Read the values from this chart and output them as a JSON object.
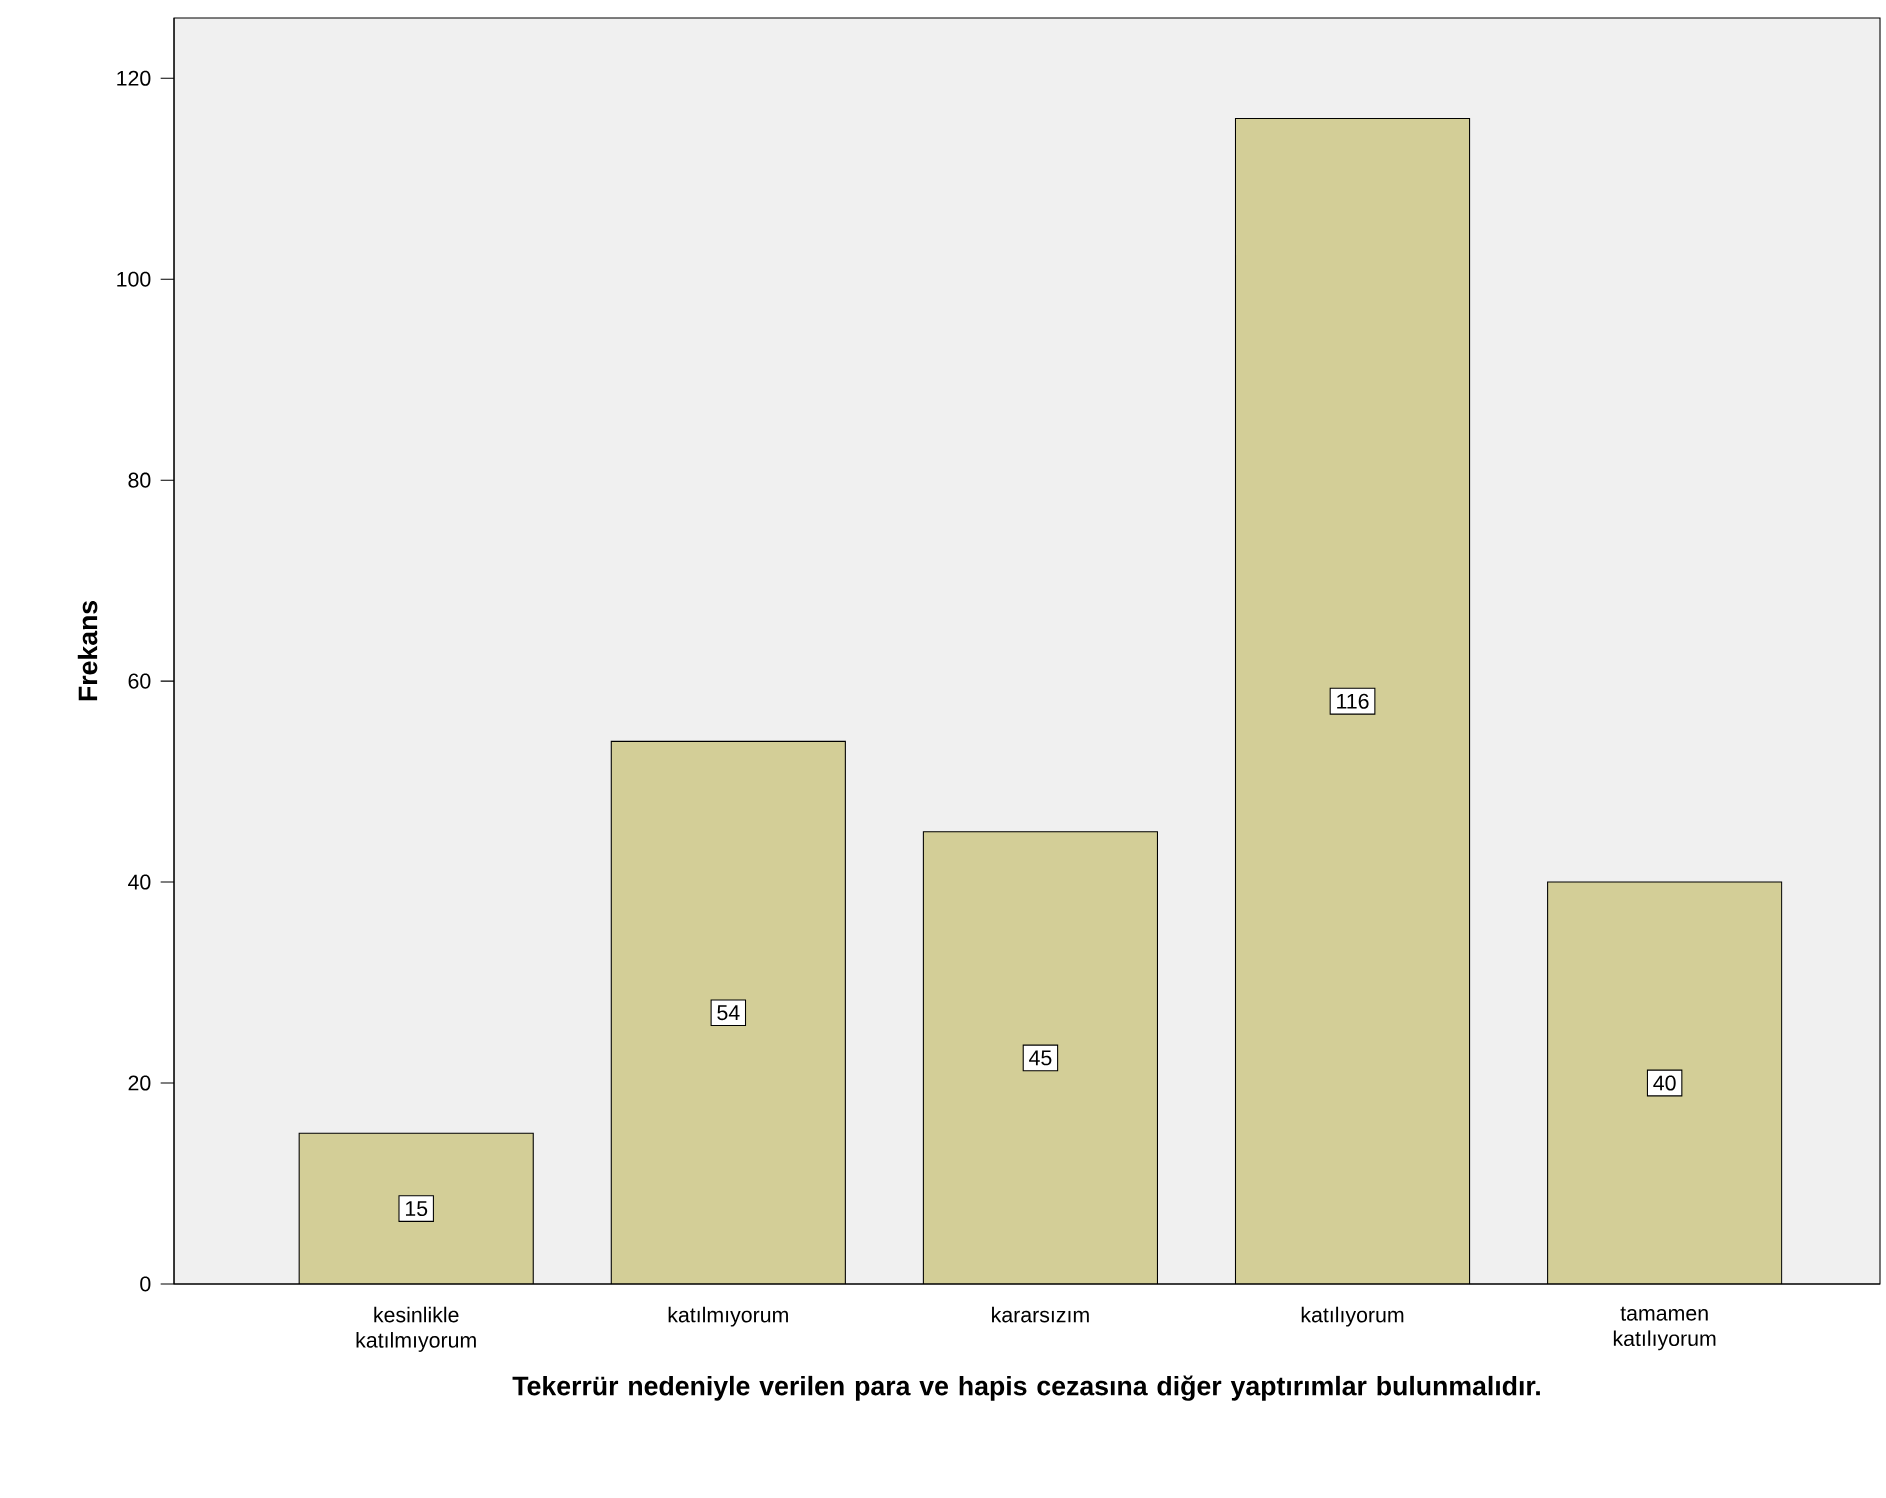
{
  "chart_data": {
    "type": "bar",
    "xlabel": "Tekerrür nedeniyle verilen para ve hapis cezasına diğer yaptırımlar bulunmalıdır.",
    "ylabel": "Frekans",
    "categories": [
      "kesinlikle katılmıyorum",
      "katılmıyorum",
      "kararsızım",
      "katılıyorum",
      "tamamen katılıyorum"
    ],
    "values": [
      15,
      54,
      45,
      116,
      40
    ],
    "color": "#d3ce97",
    "ylim": [
      0,
      126
    ],
    "yticks": [
      0,
      20,
      40,
      60,
      80,
      100,
      120
    ],
    "grid": false,
    "data_labels": true
  }
}
